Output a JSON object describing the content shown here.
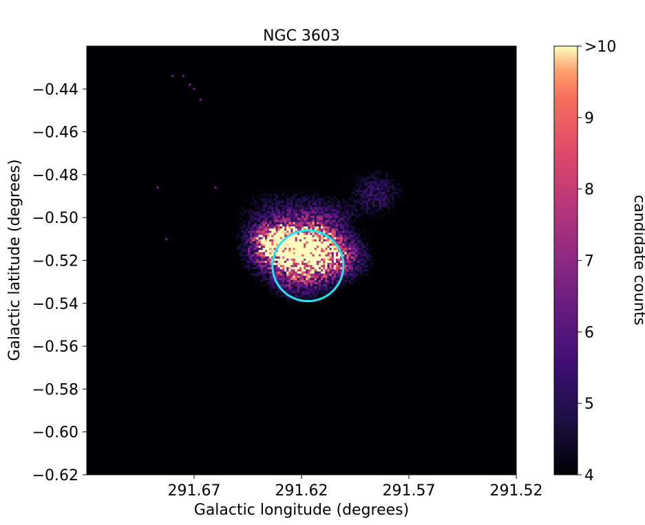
{
  "chart_data": {
    "type": "heatmap",
    "title": "NGC 3603",
    "xlabel": "Galactic longitude (degrees)",
    "ylabel": "Galactic latitude (degrees)",
    "xlim": [
      291.72,
      291.52
    ],
    "ylim": [
      -0.62,
      -0.42
    ],
    "x_ticks": [
      {
        "value": 291.67,
        "label": "291.67"
      },
      {
        "value": 291.62,
        "label": "291.62"
      },
      {
        "value": 291.57,
        "label": "291.57"
      },
      {
        "value": 291.52,
        "label": "291.52"
      }
    ],
    "y_ticks": [
      {
        "value": -0.44,
        "label": "−0.44"
      },
      {
        "value": -0.46,
        "label": "−0.46"
      },
      {
        "value": -0.48,
        "label": "−0.48"
      },
      {
        "value": -0.5,
        "label": "−0.50"
      },
      {
        "value": -0.52,
        "label": "−0.52"
      },
      {
        "value": -0.54,
        "label": "−0.54"
      },
      {
        "value": -0.56,
        "label": "−0.56"
      },
      {
        "value": -0.58,
        "label": "−0.58"
      },
      {
        "value": -0.6,
        "label": "−0.60"
      },
      {
        "value": -0.62,
        "label": "−0.62"
      }
    ],
    "colormap": "magma",
    "colorbar": {
      "label": "candidate counts",
      "range": [
        4,
        10
      ],
      "ticks": [
        {
          "value": 4,
          "label": "4"
        },
        {
          "value": 5,
          "label": "5"
        },
        {
          "value": 6,
          "label": "6"
        },
        {
          "value": 7,
          "label": "7"
        },
        {
          "value": 8,
          "label": "8"
        },
        {
          "value": 9,
          "label": "9"
        },
        {
          "value": 10,
          "label": ">10"
        }
      ]
    },
    "background_color": "#000004",
    "density_components": [
      {
        "l": 291.621,
        "b": -0.515,
        "sigma_l": 0.012,
        "sigma_b": 0.007,
        "peak": 11
      },
      {
        "l": 291.633,
        "b": -0.51,
        "sigma_l": 0.006,
        "sigma_b": 0.004,
        "peak": 4
      },
      {
        "l": 291.603,
        "b": -0.52,
        "sigma_l": 0.009,
        "sigma_b": 0.006,
        "peak": 2.5
      },
      {
        "l": 291.585,
        "b": -0.488,
        "sigma_l": 0.008,
        "sigma_b": 0.007,
        "peak": 1.6
      },
      {
        "l": 291.61,
        "b": -0.5,
        "sigma_l": 0.01,
        "sigma_b": 0.006,
        "peak": 1.4
      },
      {
        "l": 291.62,
        "b": -0.53,
        "sigma_l": 0.01,
        "sigma_b": 0.006,
        "peak": 2.0
      },
      {
        "l": 291.63,
        "b": -0.498,
        "sigma_l": 0.014,
        "sigma_b": 0.008,
        "peak": 1.2
      }
    ],
    "circle": {
      "center_l": 291.617,
      "center_b": -0.5225,
      "radius_deg": 0.0165,
      "color": "#22e6f0"
    }
  }
}
